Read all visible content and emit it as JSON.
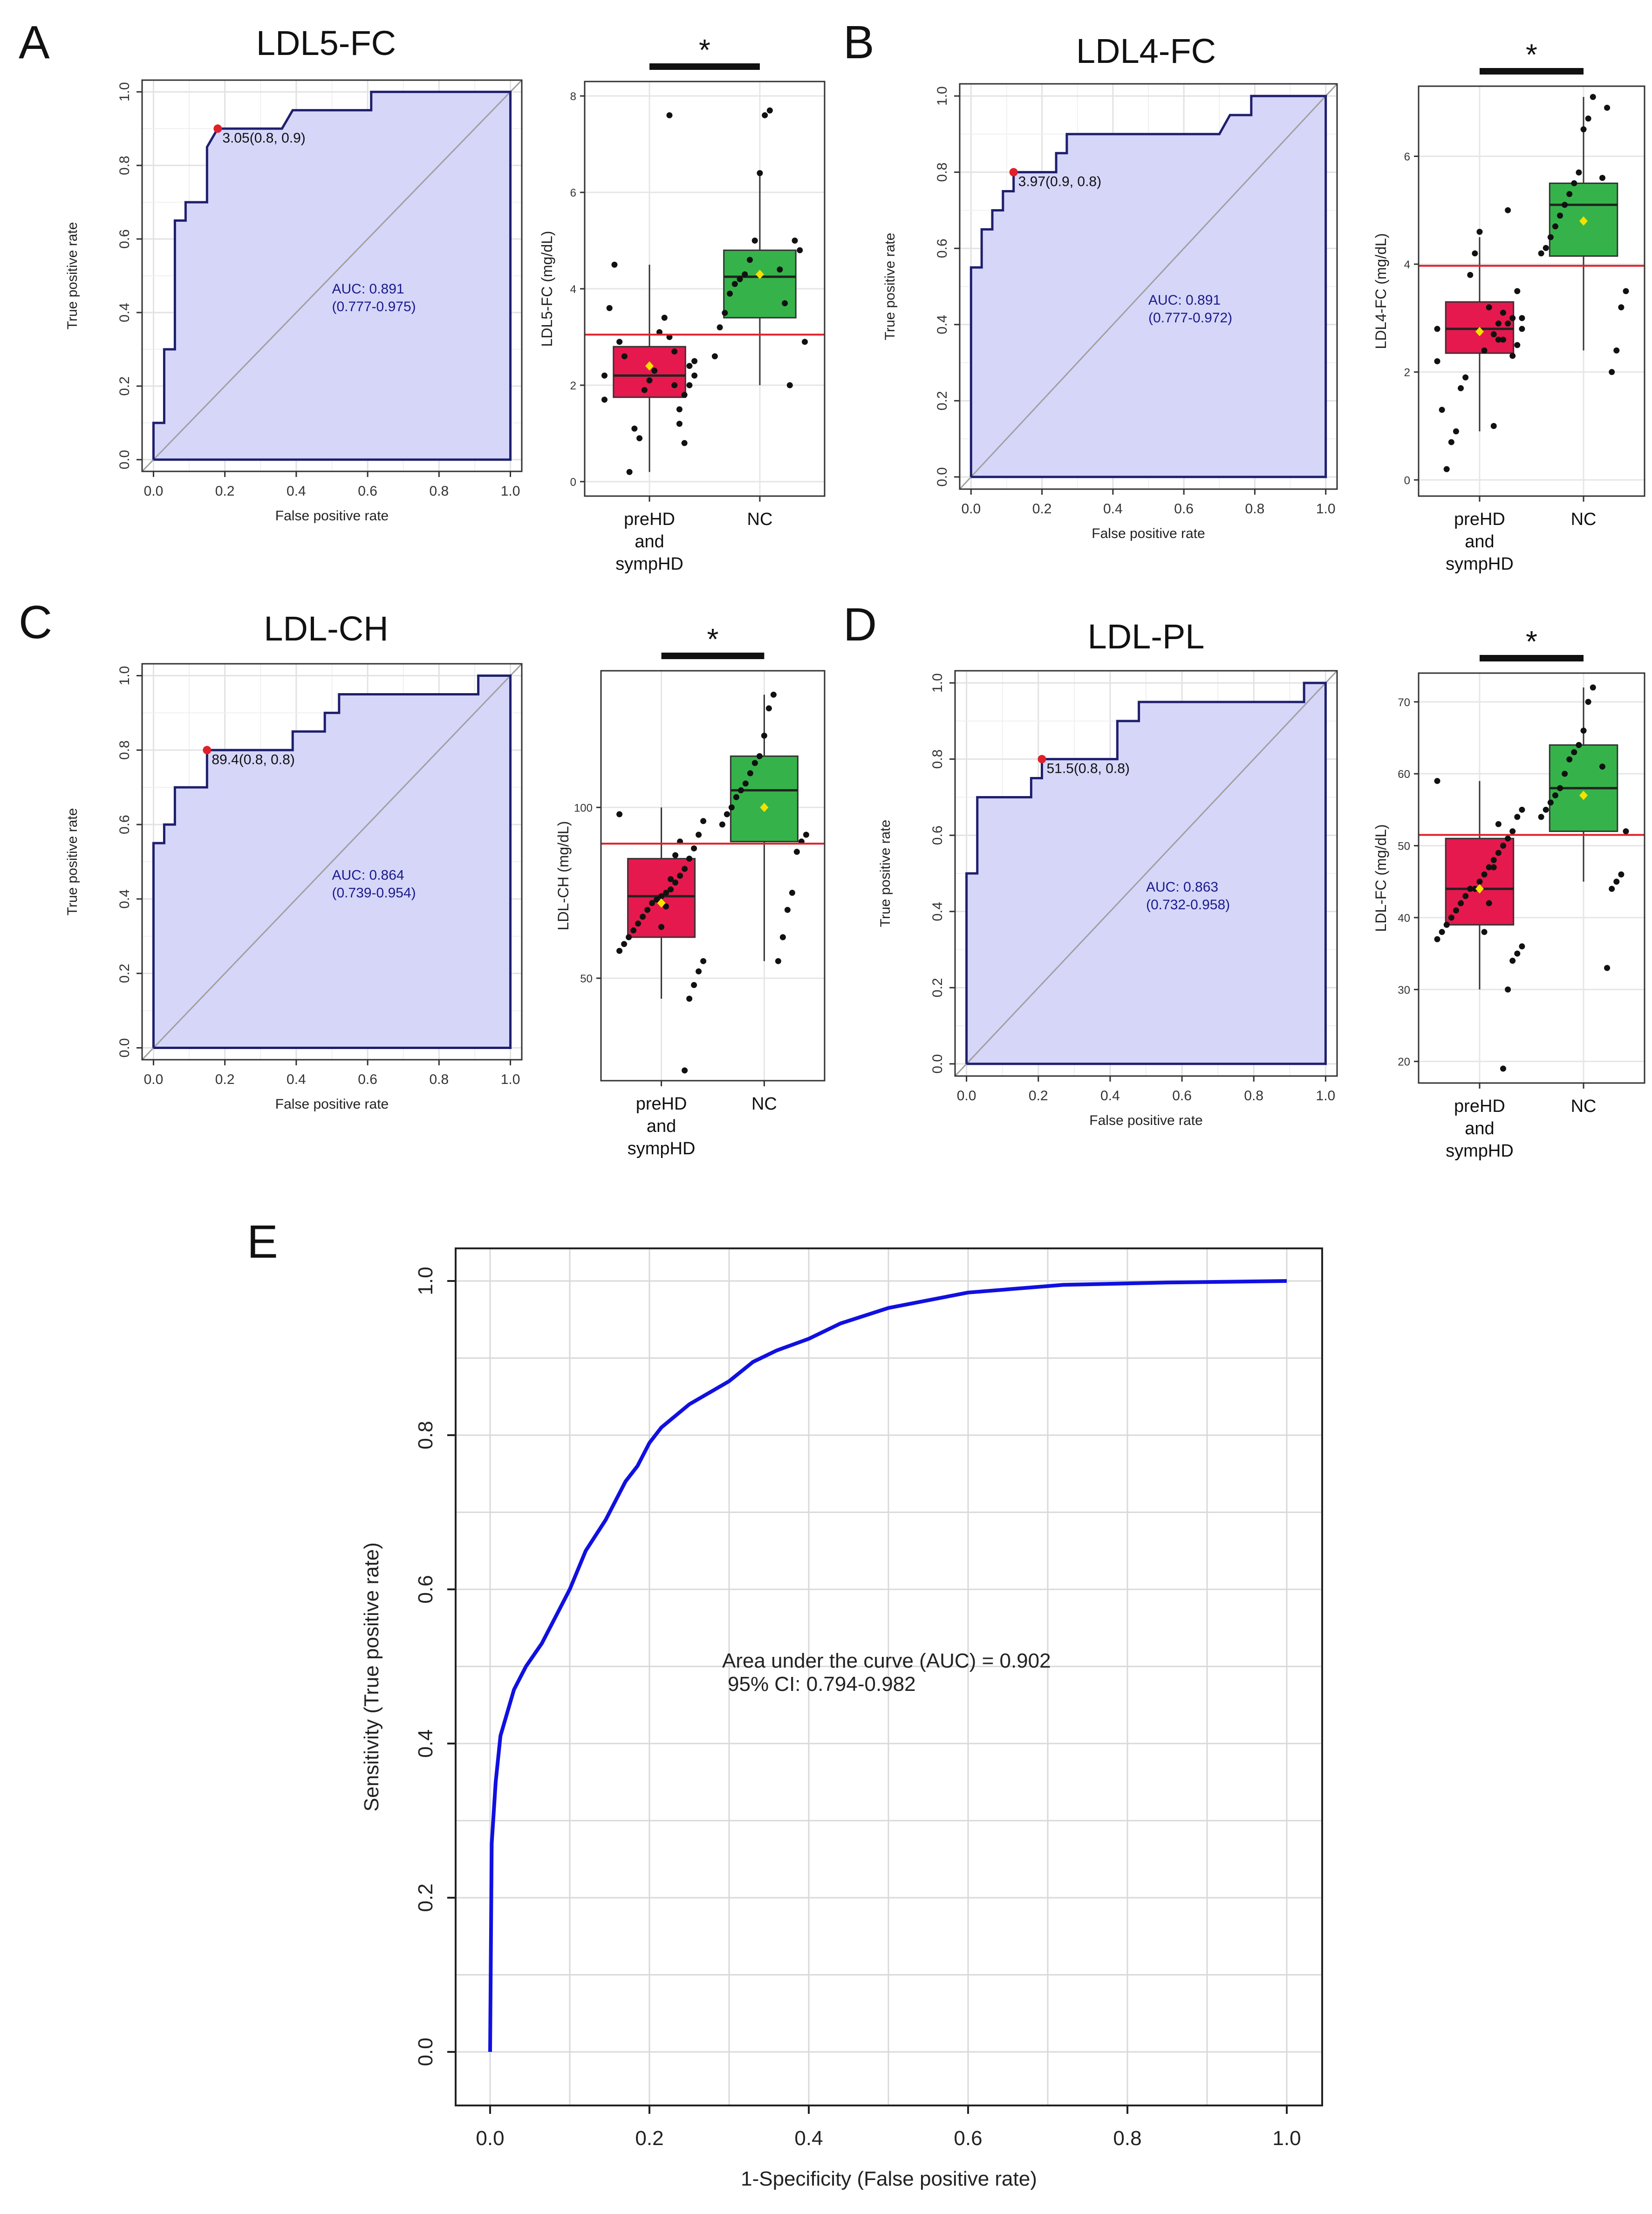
{
  "figure": {
    "panels": [
      {
        "letter": "A",
        "title": "LDL5-FC"
      },
      {
        "letter": "B",
        "title": "LDL4-FC"
      },
      {
        "letter": "C",
        "title": "LDL-CH"
      },
      {
        "letter": "D",
        "title": "LDL-PL"
      },
      {
        "letter": "E",
        "title": ""
      }
    ]
  },
  "colors": {
    "roc_fill": "#d6d6f9",
    "roc_line": "#1f1f6e",
    "diag": "#a0a0a0",
    "opt_point": "#e0202a",
    "group1_box": "#e5194d",
    "group2_box": "#35b34a",
    "threshold_line": "#e0202a",
    "mean_marker": "#f5e100",
    "panel_e_curve": "#1010e0",
    "grid": "#e6e6e6"
  },
  "chart_data": [
    {
      "id": "A-roc",
      "type": "line",
      "title": "LDL5-FC",
      "xlabel": "False positive rate",
      "ylabel": "True positive rate",
      "xlim": [
        0,
        1
      ],
      "ylim": [
        0,
        1
      ],
      "xticks": [
        "0.0",
        "0.2",
        "0.4",
        "0.6",
        "0.8",
        "1.0"
      ],
      "yticks": [
        "0.0",
        "0.2",
        "0.4",
        "0.6",
        "0.8",
        "1.0"
      ],
      "roc": [
        [
          0,
          0
        ],
        [
          0,
          0.1
        ],
        [
          0.03,
          0.1
        ],
        [
          0.03,
          0.3
        ],
        [
          0.06,
          0.3
        ],
        [
          0.06,
          0.65
        ],
        [
          0.09,
          0.65
        ],
        [
          0.09,
          0.7
        ],
        [
          0.15,
          0.7
        ],
        [
          0.15,
          0.85
        ],
        [
          0.18,
          0.9
        ],
        [
          0.36,
          0.9
        ],
        [
          0.39,
          0.95
        ],
        [
          0.61,
          0.95
        ],
        [
          0.61,
          1.0
        ],
        [
          1.0,
          1.0
        ]
      ],
      "optimal_point": [
        0.18,
        0.9
      ],
      "optimal_label": "3.05(0.8, 0.9)",
      "auc_line1": "AUC: 0.891",
      "auc_line2": "(0.777-0.975)"
    },
    {
      "id": "A-box",
      "type": "box",
      "ylabel": "LDL5-FC (mg/dL)",
      "ylim": [
        -0.3,
        8.3
      ],
      "yticks": [
        0,
        2,
        4,
        6,
        8
      ],
      "threshold": 3.05,
      "significance": "*",
      "categories": [
        "preHD and sympHD",
        "NC"
      ],
      "category_lines": [
        [
          "preHD",
          "and",
          "sympHD"
        ],
        [
          "NC"
        ]
      ],
      "groups": [
        {
          "q1": 1.75,
          "median": 2.2,
          "q3": 2.8,
          "whisker_low": 0.2,
          "whisker_high": 4.5,
          "mean": 2.4,
          "points": [
            2.2,
            2.5,
            2.0,
            1.8,
            1.5,
            2.7,
            3.0,
            3.4,
            3.1,
            2.3,
            2.1,
            1.9,
            0.9,
            1.1,
            0.2,
            2.6,
            2.9,
            4.5,
            3.6,
            1.7,
            2.2,
            2.4,
            0.8,
            1.2,
            2.0,
            7.6
          ]
        },
        {
          "q1": 3.4,
          "median": 4.25,
          "q3": 4.8,
          "whisker_low": 2.0,
          "whisker_high": 6.4,
          "mean": 4.3,
          "points": [
            7.7,
            7.6,
            6.4,
            5.0,
            4.6,
            4.3,
            4.2,
            4.1,
            3.9,
            3.5,
            3.2,
            2.6,
            2.9,
            4.8,
            5.0,
            2.0,
            3.7,
            4.4
          ]
        }
      ]
    },
    {
      "id": "B-roc",
      "type": "line",
      "title": "LDL4-FC",
      "xlabel": "False positive rate",
      "ylabel": "True positive rate",
      "xlim": [
        0,
        1
      ],
      "ylim": [
        0,
        1
      ],
      "xticks": [
        "0.0",
        "0.2",
        "0.4",
        "0.6",
        "0.8",
        "1.0"
      ],
      "yticks": [
        "0.0",
        "0.2",
        "0.4",
        "0.6",
        "0.8",
        "1.0"
      ],
      "roc": [
        [
          0,
          0
        ],
        [
          0,
          0.55
        ],
        [
          0.03,
          0.55
        ],
        [
          0.03,
          0.65
        ],
        [
          0.06,
          0.65
        ],
        [
          0.06,
          0.7
        ],
        [
          0.09,
          0.7
        ],
        [
          0.09,
          0.75
        ],
        [
          0.12,
          0.75
        ],
        [
          0.12,
          0.8
        ],
        [
          0.24,
          0.8
        ],
        [
          0.24,
          0.85
        ],
        [
          0.27,
          0.85
        ],
        [
          0.27,
          0.9
        ],
        [
          0.7,
          0.9
        ],
        [
          0.73,
          0.95
        ],
        [
          0.79,
          0.95
        ],
        [
          0.79,
          1.0
        ],
        [
          1.0,
          1.0
        ]
      ],
      "optimal_point": [
        0.12,
        0.8
      ],
      "optimal_label": "3.97(0.9, 0.8)",
      "auc_line1": "AUC: 0.891",
      "auc_line2": "(0.777-0.972)"
    },
    {
      "id": "B-box",
      "type": "box",
      "ylabel": "LDL4-FC (mg/dL)",
      "ylim": [
        -0.3,
        7.3
      ],
      "yticks": [
        0,
        2,
        4,
        6
      ],
      "threshold": 3.97,
      "significance": "*",
      "categories": [
        "preHD and sympHD",
        "NC"
      ],
      "category_lines": [
        [
          "preHD",
          "and",
          "sympHD"
        ],
        [
          "NC"
        ]
      ],
      "groups": [
        {
          "q1": 2.35,
          "median": 2.8,
          "q3": 3.3,
          "whisker_low": 0.9,
          "whisker_high": 4.5,
          "mean": 2.75,
          "points": [
            2.8,
            3.0,
            2.5,
            2.3,
            2.9,
            3.1,
            2.6,
            2.7,
            3.2,
            2.4,
            4.6,
            4.2,
            3.8,
            1.9,
            1.7,
            0.9,
            0.7,
            0.2,
            1.3,
            2.2,
            2.8,
            3.5,
            3.0,
            5.0,
            2.6,
            2.9,
            1.0
          ]
        },
        {
          "q1": 4.15,
          "median": 5.1,
          "q3": 5.5,
          "whisker_low": 2.4,
          "whisker_high": 7.1,
          "mean": 4.8,
          "points": [
            7.1,
            6.7,
            6.5,
            5.7,
            5.5,
            5.3,
            5.1,
            4.9,
            4.7,
            4.5,
            4.3,
            4.2,
            3.5,
            3.2,
            2.4,
            2.0,
            6.9,
            5.6
          ]
        }
      ]
    },
    {
      "id": "C-roc",
      "type": "line",
      "title": "LDL-CH",
      "xlabel": "False positive rate",
      "ylabel": "True positive rate",
      "xlim": [
        0,
        1
      ],
      "ylim": [
        0,
        1
      ],
      "xticks": [
        "0.0",
        "0.2",
        "0.4",
        "0.6",
        "0.8",
        "1.0"
      ],
      "yticks": [
        "0.0",
        "0.2",
        "0.4",
        "0.6",
        "0.8",
        "1.0"
      ],
      "roc": [
        [
          0,
          0
        ],
        [
          0,
          0.55
        ],
        [
          0.03,
          0.55
        ],
        [
          0.03,
          0.6
        ],
        [
          0.06,
          0.6
        ],
        [
          0.06,
          0.7
        ],
        [
          0.15,
          0.7
        ],
        [
          0.15,
          0.8
        ],
        [
          0.39,
          0.8
        ],
        [
          0.39,
          0.85
        ],
        [
          0.48,
          0.85
        ],
        [
          0.48,
          0.9
        ],
        [
          0.52,
          0.9
        ],
        [
          0.52,
          0.95
        ],
        [
          0.91,
          0.95
        ],
        [
          0.91,
          1.0
        ],
        [
          1.0,
          1.0
        ]
      ],
      "optimal_point": [
        0.15,
        0.8
      ],
      "optimal_label": "89.4(0.8, 0.8)",
      "auc_line1": "AUC: 0.864",
      "auc_line2": "(0.739-0.954)"
    },
    {
      "id": "C-box",
      "type": "box",
      "ylabel": "LDL-CH (mg/dL)",
      "ylim": [
        20,
        140
      ],
      "yticks": [
        50,
        100
      ],
      "threshold": 89.4,
      "significance": "*",
      "categories": [
        "preHD and sympHD",
        "NC"
      ],
      "category_lines": [
        [
          "preHD",
          "and",
          "sympHD"
        ],
        [
          "NC"
        ]
      ],
      "groups": [
        {
          "q1": 62,
          "median": 74,
          "q3": 85,
          "whisker_low": 44,
          "whisker_high": 100,
          "mean": 72,
          "points": [
            98,
            96,
            92,
            88,
            85,
            82,
            80,
            78,
            76,
            75,
            74,
            73,
            72,
            70,
            68,
            66,
            64,
            62,
            60,
            58,
            55,
            52,
            48,
            44,
            23,
            90,
            86,
            79,
            71,
            65
          ]
        },
        {
          "q1": 90,
          "median": 105,
          "q3": 115,
          "whisker_low": 55,
          "whisker_high": 133,
          "mean": 100,
          "points": [
            133,
            129,
            121,
            115,
            113,
            110,
            107,
            105,
            103,
            100,
            98,
            95,
            92,
            90,
            87,
            75,
            70,
            62,
            55
          ]
        }
      ]
    },
    {
      "id": "D-roc",
      "type": "line",
      "title": "LDL-PL",
      "xlabel": "False positive rate",
      "ylabel": "True positive rate",
      "xlim": [
        0,
        1
      ],
      "ylim": [
        0,
        1
      ],
      "xticks": [
        "0.0",
        "0.2",
        "0.4",
        "0.6",
        "0.8",
        "1.0"
      ],
      "yticks": [
        "0.0",
        "0.2",
        "0.4",
        "0.6",
        "0.8",
        "1.0"
      ],
      "roc": [
        [
          0,
          0
        ],
        [
          0,
          0.5
        ],
        [
          0.03,
          0.5
        ],
        [
          0.03,
          0.7
        ],
        [
          0.18,
          0.7
        ],
        [
          0.18,
          0.75
        ],
        [
          0.21,
          0.75
        ],
        [
          0.21,
          0.8
        ],
        [
          0.42,
          0.8
        ],
        [
          0.42,
          0.9
        ],
        [
          0.48,
          0.9
        ],
        [
          0.48,
          0.95
        ],
        [
          0.94,
          0.95
        ],
        [
          0.94,
          1.0
        ],
        [
          1.0,
          1.0
        ]
      ],
      "optimal_point": [
        0.21,
        0.8
      ],
      "optimal_label": "51.5(0.8, 0.8)",
      "auc_line1": "AUC: 0.863",
      "auc_line2": "(0.732-0.958)"
    },
    {
      "id": "D-box",
      "type": "box",
      "ylabel": "LDL-FC (mg/dL)",
      "ylim": [
        17,
        74
      ],
      "yticks": [
        20,
        30,
        40,
        50,
        60,
        70
      ],
      "threshold": 51.5,
      "significance": "*",
      "categories": [
        "preHD and sympHD",
        "NC"
      ],
      "category_lines": [
        [
          "preHD",
          "and",
          "sympHD"
        ],
        [
          "NC"
        ]
      ],
      "groups": [
        {
          "q1": 39,
          "median": 44,
          "q3": 51,
          "whisker_low": 30,
          "whisker_high": 59,
          "mean": 44,
          "points": [
            59,
            55,
            54,
            52,
            51,
            50,
            49,
            48,
            47,
            46,
            45,
            44,
            44,
            43,
            42,
            41,
            40,
            39,
            38,
            37,
            36,
            35,
            34,
            30,
            19,
            53,
            47,
            42,
            38
          ]
        },
        {
          "q1": 52,
          "median": 58,
          "q3": 64,
          "whisker_low": 45,
          "whisker_high": 72,
          "mean": 57,
          "points": [
            72,
            70,
            66,
            64,
            63,
            62,
            60,
            58,
            57,
            56,
            55,
            54,
            52,
            46,
            45,
            44,
            33,
            61
          ]
        }
      ]
    },
    {
      "id": "E-roc",
      "type": "line",
      "title": "",
      "xlabel": "1-Specificity (False positive rate)",
      "ylabel": "Sensitivity (True positive rate)",
      "xlim": [
        0,
        1
      ],
      "ylim": [
        0,
        1
      ],
      "xticks": [
        "0.0",
        "0.2",
        "0.4",
        "0.6",
        "0.8",
        "1.0"
      ],
      "yticks": [
        "0.0",
        "0.2",
        "0.4",
        "0.6",
        "0.8",
        "1.0"
      ],
      "roc": [
        [
          0,
          0
        ],
        [
          0.002,
          0.27
        ],
        [
          0.007,
          0.35
        ],
        [
          0.013,
          0.41
        ],
        [
          0.03,
          0.47
        ],
        [
          0.045,
          0.5
        ],
        [
          0.065,
          0.53
        ],
        [
          0.08,
          0.56
        ],
        [
          0.1,
          0.6
        ],
        [
          0.12,
          0.65
        ],
        [
          0.145,
          0.69
        ],
        [
          0.17,
          0.74
        ],
        [
          0.185,
          0.76
        ],
        [
          0.2,
          0.79
        ],
        [
          0.215,
          0.81
        ],
        [
          0.25,
          0.84
        ],
        [
          0.3,
          0.87
        ],
        [
          0.33,
          0.895
        ],
        [
          0.36,
          0.91
        ],
        [
          0.4,
          0.925
        ],
        [
          0.44,
          0.945
        ],
        [
          0.5,
          0.965
        ],
        [
          0.6,
          0.985
        ],
        [
          0.72,
          0.995
        ],
        [
          0.85,
          0.998
        ],
        [
          1.0,
          1.0
        ]
      ],
      "auc_line1": "Area under the curve (AUC) = 0.902",
      "auc_line2": "95% CI: 0.794-0.982"
    }
  ]
}
